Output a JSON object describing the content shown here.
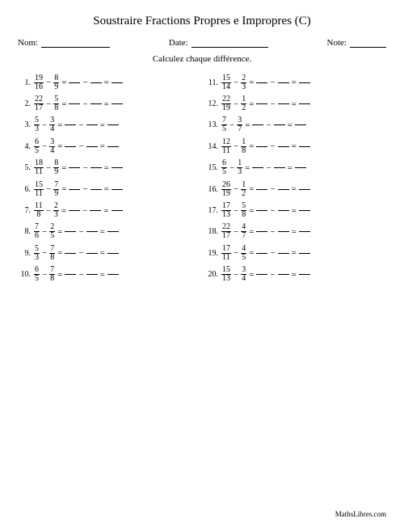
{
  "title": "Soustraire Fractions Propres e Impropres (C)",
  "labels": {
    "name": "Nom:",
    "date": "Date:",
    "note": "Note:"
  },
  "instruction": "Calculez chaque différence.",
  "footer": "MathsLibres.com",
  "problems_left": [
    {
      "n": 1,
      "a_num": 19,
      "a_den": 16,
      "b_num": 8,
      "b_den": 9
    },
    {
      "n": 2,
      "a_num": 22,
      "a_den": 17,
      "b_num": 5,
      "b_den": 8
    },
    {
      "n": 3,
      "a_num": 5,
      "a_den": 3,
      "b_num": 3,
      "b_den": 4
    },
    {
      "n": 4,
      "a_num": 6,
      "a_den": 5,
      "b_num": 3,
      "b_den": 4
    },
    {
      "n": 5,
      "a_num": 18,
      "a_den": 11,
      "b_num": 8,
      "b_den": 9
    },
    {
      "n": 6,
      "a_num": 15,
      "a_den": 11,
      "b_num": 7,
      "b_den": 9
    },
    {
      "n": 7,
      "a_num": 11,
      "a_den": 8,
      "b_num": 2,
      "b_den": 3
    },
    {
      "n": 8,
      "a_num": 7,
      "a_den": 6,
      "b_num": 2,
      "b_den": 5
    },
    {
      "n": 9,
      "a_num": 5,
      "a_den": 3,
      "b_num": 7,
      "b_den": 8
    },
    {
      "n": 10,
      "a_num": 6,
      "a_den": 5,
      "b_num": 7,
      "b_den": 8
    }
  ],
  "problems_right": [
    {
      "n": 11,
      "a_num": 15,
      "a_den": 14,
      "b_num": 2,
      "b_den": 3
    },
    {
      "n": 12,
      "a_num": 22,
      "a_den": 19,
      "b_num": 1,
      "b_den": 2
    },
    {
      "n": 13,
      "a_num": 7,
      "a_den": 5,
      "b_num": 3,
      "b_den": 7
    },
    {
      "n": 14,
      "a_num": 12,
      "a_den": 11,
      "b_num": 1,
      "b_den": 8
    },
    {
      "n": 15,
      "a_num": 6,
      "a_den": 5,
      "b_num": 1,
      "b_den": 3
    },
    {
      "n": 16,
      "a_num": 26,
      "a_den": 19,
      "b_num": 1,
      "b_den": 2
    },
    {
      "n": 17,
      "a_num": 17,
      "a_den": 13,
      "b_num": 5,
      "b_den": 8
    },
    {
      "n": 18,
      "a_num": 22,
      "a_den": 17,
      "b_num": 4,
      "b_den": 7
    },
    {
      "n": 19,
      "a_num": 17,
      "a_den": 11,
      "b_num": 4,
      "b_den": 5
    },
    {
      "n": 20,
      "a_num": 15,
      "a_den": 13,
      "b_num": 3,
      "b_den": 4
    }
  ],
  "symbols": {
    "minus": "−",
    "equals": "="
  },
  "colors": {
    "text": "#000000",
    "background": "#ffffff"
  }
}
